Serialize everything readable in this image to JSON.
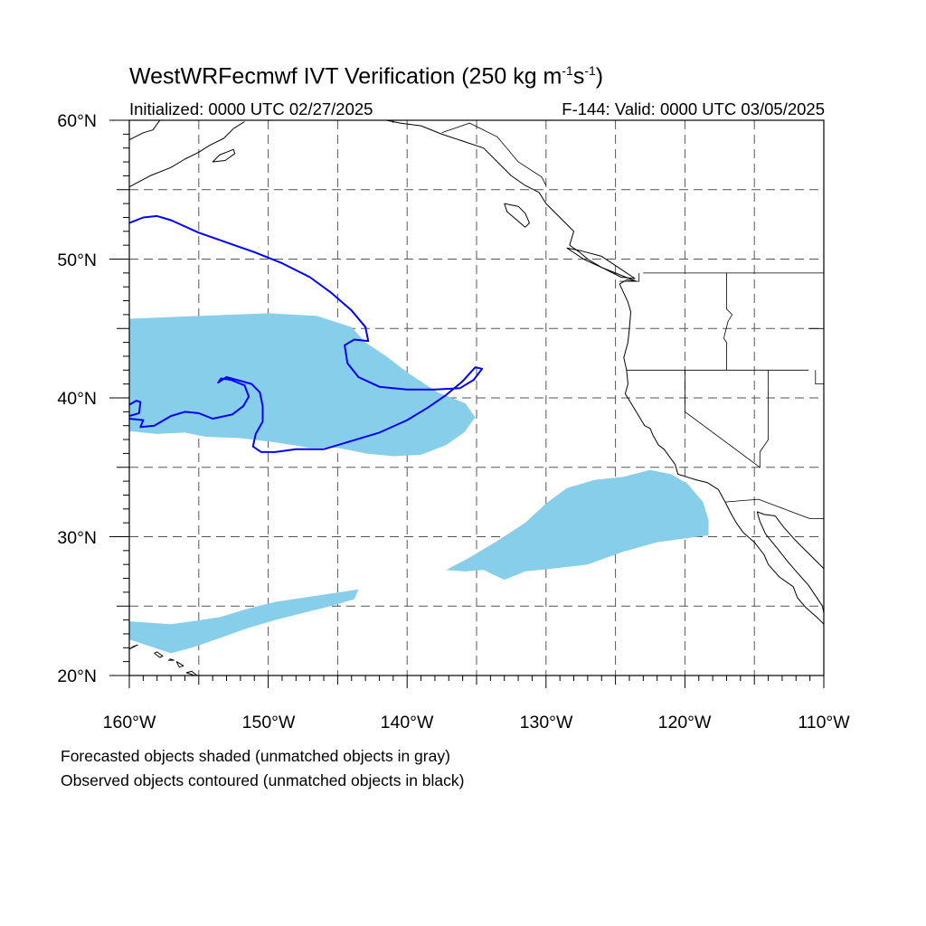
{
  "title": {
    "prefix": "WestWRFecmwf IVT Verification (250 kg m",
    "exp1": "-1",
    "mid": "s",
    "exp2": "-1",
    "suffix": ")"
  },
  "initialized": "Initialized: 0000 UTC 02/27/2025",
  "valid": "F-144: Valid: 0000 UTC 03/05/2025",
  "lat_labels": [
    "60°N",
    "50°N",
    "40°N",
    "30°N",
    "20°N"
  ],
  "lon_labels": [
    "160°W",
    "150°W",
    "140°W",
    "130°W",
    "120°W",
    "110°W"
  ],
  "notes": [
    "Forecasted objects shaded (unmatched objects in gray)",
    "Observed objects contoured (unmatched objects in black)"
  ],
  "colors": {
    "forecast_fill": "#87CEEB",
    "observed_contour": "#0000FF",
    "coastline": "#000000",
    "grid": "#555555"
  },
  "map_extent": {
    "lon_min": -160,
    "lon_max": -110,
    "lat_min": 20,
    "lat_max": 60
  },
  "forecast_objects": [
    {
      "name": "north-pacific-object",
      "polygon": [
        [
          -160,
          45.7
        ],
        [
          -155,
          45.9
        ],
        [
          -150,
          46.1
        ],
        [
          -146.5,
          45.9
        ],
        [
          -144,
          45.1
        ],
        [
          -143,
          44
        ],
        [
          -141.5,
          43
        ],
        [
          -139.8,
          41.7
        ],
        [
          -137.8,
          40.4
        ],
        [
          -135.8,
          39.6
        ],
        [
          -135.1,
          38.6
        ],
        [
          -135.9,
          37.5
        ],
        [
          -137.2,
          36.6
        ],
        [
          -139,
          35.9
        ],
        [
          -141,
          35.8
        ],
        [
          -143,
          36
        ],
        [
          -145,
          36.4
        ],
        [
          -147,
          36.4
        ],
        [
          -149.5,
          36.8
        ],
        [
          -152,
          37.1
        ],
        [
          -154.5,
          37.2
        ],
        [
          -156,
          37.5
        ],
        [
          -158,
          37.4
        ],
        [
          -160,
          37.6
        ]
      ]
    },
    {
      "name": "subtropical-object",
      "polygon": [
        [
          -137.2,
          27.6
        ],
        [
          -135.5,
          28.5
        ],
        [
          -133.5,
          29.7
        ],
        [
          -131.5,
          31
        ],
        [
          -130,
          32.4
        ],
        [
          -128.5,
          33.5
        ],
        [
          -126.5,
          34.1
        ],
        [
          -124.5,
          34.3
        ],
        [
          -122.5,
          34.8
        ],
        [
          -121,
          34.5
        ],
        [
          -119.8,
          33.8
        ],
        [
          -118.7,
          32.5
        ],
        [
          -118.3,
          31.2
        ],
        [
          -118.3,
          30.1
        ],
        [
          -119.8,
          29.9
        ],
        [
          -122,
          29.6
        ],
        [
          -124.5,
          28.9
        ],
        [
          -127,
          28
        ],
        [
          -129.5,
          27.7
        ],
        [
          -131.5,
          27.5
        ],
        [
          -133,
          26.9
        ],
        [
          -134.5,
          27.6
        ],
        [
          -135.8,
          27.5
        ]
      ]
    },
    {
      "name": "tropical-object",
      "polygon": [
        [
          -160,
          23.9
        ],
        [
          -157,
          23.7
        ],
        [
          -155.5,
          23.9
        ],
        [
          -153.5,
          24.2
        ],
        [
          -151.5,
          24.8
        ],
        [
          -149.5,
          25.3
        ],
        [
          -147.5,
          25.6
        ],
        [
          -145.5,
          25.9
        ],
        [
          -143.5,
          26.2
        ],
        [
          -143.8,
          25.5
        ],
        [
          -145.5,
          25
        ],
        [
          -147.5,
          24.5
        ],
        [
          -149.5,
          24
        ],
        [
          -151.5,
          23.4
        ],
        [
          -153.5,
          22.7
        ],
        [
          -155.5,
          22
        ],
        [
          -157,
          21.6
        ],
        [
          -158.5,
          22.1
        ],
        [
          -160,
          22.6
        ]
      ]
    }
  ],
  "observed_objects": [
    {
      "name": "observed-contour-north",
      "line": [
        [
          -160,
          52.6
        ],
        [
          -159,
          53
        ],
        [
          -158,
          53.1
        ],
        [
          -157,
          52.8
        ],
        [
          -155,
          51.9
        ],
        [
          -153,
          51.2
        ],
        [
          -151,
          50.5
        ],
        [
          -149,
          49.7
        ],
        [
          -147,
          48.7
        ],
        [
          -145.5,
          47.6
        ],
        [
          -144,
          46.3
        ],
        [
          -143,
          45.1
        ],
        [
          -142.8,
          44.1
        ],
        [
          -143.8,
          44.2
        ],
        [
          -144.5,
          43.8
        ],
        [
          -144.3,
          42.5
        ],
        [
          -143.5,
          41.5
        ],
        [
          -142,
          40.8
        ],
        [
          -140,
          40.6
        ],
        [
          -138,
          40.6
        ],
        [
          -136.2,
          40.7
        ],
        [
          -135.2,
          41.3
        ],
        [
          -134.6,
          42.1
        ],
        [
          -135.1,
          42.2
        ],
        [
          -136,
          41.2
        ],
        [
          -137.2,
          40.2
        ],
        [
          -138.5,
          39.3
        ],
        [
          -140,
          38.4
        ],
        [
          -142,
          37.5
        ],
        [
          -144,
          36.9
        ],
        [
          -146,
          36.3
        ],
        [
          -148,
          36.3
        ],
        [
          -149.5,
          36.1
        ],
        [
          -150.5,
          36.1
        ],
        [
          -151.1,
          36.5
        ],
        [
          -150.9,
          37.4
        ],
        [
          -150.4,
          38.3
        ],
        [
          -150.4,
          39.4
        ],
        [
          -150.6,
          40.4
        ],
        [
          -151.2,
          41
        ],
        [
          -153,
          41.5
        ],
        [
          -153.6,
          41.1
        ],
        [
          -153.4,
          41.4
        ],
        [
          -152.7,
          41.3
        ],
        [
          -151.7,
          40.9
        ],
        [
          -151.4,
          40.1
        ],
        [
          -151.8,
          39.4
        ],
        [
          -152.6,
          38.8
        ],
        [
          -154,
          38.5
        ],
        [
          -155,
          38.9
        ],
        [
          -156,
          39
        ],
        [
          -157,
          38.7
        ],
        [
          -158.2,
          38
        ],
        [
          -159.2,
          37.9
        ],
        [
          -159,
          38.4
        ],
        [
          -160,
          38.5
        ]
      ]
    },
    {
      "name": "observed-contour-west",
      "line": [
        [
          -160,
          39.5
        ],
        [
          -159.5,
          39.8
        ],
        [
          -159.2,
          39.7
        ],
        [
          -159.3,
          38.9
        ],
        [
          -160,
          38.7
        ]
      ]
    }
  ],
  "coastlines": [
    [
      [
        -117.1,
        32.5
      ],
      [
        -117.6,
        33.4
      ],
      [
        -118.4,
        33.9
      ],
      [
        -119.2,
        34.1
      ],
      [
        -120.5,
        34.5
      ],
      [
        -120.7,
        35.2
      ],
      [
        -121.5,
        36.3
      ],
      [
        -121.9,
        36.6
      ],
      [
        -122.3,
        37.3
      ],
      [
        -122.5,
        37.8
      ],
      [
        -122.9,
        38
      ],
      [
        -123.8,
        39.5
      ],
      [
        -124.3,
        40.3
      ],
      [
        -124.1,
        41
      ],
      [
        -124.2,
        42
      ],
      [
        -124.4,
        42.9
      ],
      [
        -124.1,
        44
      ],
      [
        -124,
        45
      ],
      [
        -123.9,
        46.2
      ],
      [
        -124.1,
        46.9
      ],
      [
        -124.7,
        48.2
      ],
      [
        -124.2,
        48.5
      ],
      [
        -123.5,
        48.4
      ],
      [
        -125,
        49
      ],
      [
        -126,
        49.4
      ],
      [
        -127,
        50
      ],
      [
        -127.6,
        50.5
      ],
      [
        -128.3,
        51
      ],
      [
        -128,
        52
      ],
      [
        -129,
        53
      ],
      [
        -130,
        54
      ],
      [
        -130.5,
        54.8
      ],
      [
        -131.5,
        55.3
      ],
      [
        -132.5,
        56
      ],
      [
        -133.5,
        57
      ],
      [
        -134.5,
        58
      ],
      [
        -136,
        58.5
      ],
      [
        -137.5,
        59
      ],
      [
        -139,
        59.6
      ],
      [
        -140.5,
        59.8
      ],
      [
        -141.5,
        60
      ]
    ],
    [
      [
        -117.1,
        32.5
      ],
      [
        -116.7,
        31.7
      ],
      [
        -116.3,
        31
      ],
      [
        -115.8,
        30.3
      ],
      [
        -115,
        29.6
      ],
      [
        -114.3,
        28.7
      ],
      [
        -114,
        28
      ],
      [
        -113.2,
        27.1
      ],
      [
        -112.2,
        26.4
      ],
      [
        -111.9,
        25.6
      ],
      [
        -111.3,
        24.9
      ],
      [
        -110.5,
        24.2
      ],
      [
        -110,
        23.7
      ]
    ],
    [
      [
        -114.8,
        31.8
      ],
      [
        -114.6,
        31.1
      ],
      [
        -114.2,
        30.2
      ],
      [
        -113.3,
        29.1
      ],
      [
        -112.6,
        28.2
      ],
      [
        -111.9,
        27.4
      ],
      [
        -111.1,
        26.5
      ],
      [
        -110.1,
        25
      ],
      [
        -110,
        24.5
      ]
    ],
    [
      [
        -110,
        27.7
      ],
      [
        -110.6,
        28.3
      ],
      [
        -111.3,
        29
      ],
      [
        -112.1,
        29.8
      ],
      [
        -112.9,
        30.7
      ],
      [
        -113.5,
        31.5
      ],
      [
        -114.3,
        31.6
      ],
      [
        -114.8,
        31.8
      ]
    ],
    [
      [
        -160,
        55.2
      ],
      [
        -158.5,
        56
      ],
      [
        -157,
        56.6
      ],
      [
        -156,
        57.2
      ],
      [
        -155,
        57.7
      ],
      [
        -154.2,
        58.2
      ],
      [
        -153.2,
        58.7
      ],
      [
        -152.5,
        59.4
      ],
      [
        -151.7,
        59.9
      ]
    ],
    [
      [
        -160,
        58.6
      ],
      [
        -159,
        59.1
      ],
      [
        -158.3,
        59.3
      ],
      [
        -157.8,
        60
      ]
    ],
    [
      [
        -152.5,
        57.9
      ],
      [
        -153.5,
        57.5
      ],
      [
        -154,
        57
      ],
      [
        -153.1,
        57.1
      ],
      [
        -152.4,
        57.6
      ],
      [
        -152.5,
        57.9
      ]
    ],
    [
      [
        -133,
        54
      ],
      [
        -132,
        53.8
      ],
      [
        -131.5,
        53.3
      ],
      [
        -131.2,
        52.6
      ],
      [
        -131.5,
        52.3
      ],
      [
        -132.2,
        52.9
      ],
      [
        -132.8,
        53.4
      ],
      [
        -133,
        54
      ]
    ],
    [
      [
        -128.5,
        50.8
      ],
      [
        -127.5,
        50.6
      ],
      [
        -126,
        50.2
      ],
      [
        -124.8,
        49.4
      ],
      [
        -123.6,
        48.6
      ],
      [
        -124.6,
        48.7
      ],
      [
        -125.8,
        49.3
      ],
      [
        -127.3,
        50
      ],
      [
        -128.5,
        50.8
      ]
    ],
    [
      [
        -160,
        21.9
      ],
      [
        -159.4,
        22.2
      ],
      [
        -159.7,
        22.1
      ],
      [
        -160,
        21.9
      ]
    ],
    [
      [
        -158.2,
        21.6
      ],
      [
        -157.8,
        21.3
      ],
      [
        -157.6,
        21.4
      ],
      [
        -158,
        21.7
      ],
      [
        -158.2,
        21.6
      ]
    ],
    [
      [
        -157.1,
        21.2
      ],
      [
        -156.8,
        21.1
      ],
      [
        -157.2,
        21.1
      ]
    ],
    [
      [
        -156.6,
        21
      ],
      [
        -156.1,
        20.7
      ],
      [
        -156.4,
        20.6
      ],
      [
        -156.6,
        21
      ]
    ],
    [
      [
        -155.9,
        20.2
      ],
      [
        -155,
        19.9
      ],
      [
        -155.5,
        20.3
      ],
      [
        -155.9,
        20.2
      ]
    ]
  ],
  "borders": [
    [
      [
        -123,
        49
      ],
      [
        -110,
        49
      ]
    ],
    [
      [
        -117,
        49
      ],
      [
        -117,
        46.4
      ],
      [
        -116.6,
        46
      ],
      [
        -116.9,
        45.5
      ],
      [
        -117.2,
        44.3
      ],
      [
        -117,
        44
      ],
      [
        -117,
        42
      ]
    ],
    [
      [
        -124.2,
        42
      ],
      [
        -111.1,
        42
      ]
    ],
    [
      [
        -120,
        42
      ],
      [
        -120,
        39
      ],
      [
        -114.6,
        35
      ]
    ],
    [
      [
        -114,
        42
      ],
      [
        -114,
        37
      ],
      [
        -114.6,
        36.1
      ],
      [
        -114.6,
        35
      ]
    ],
    [
      [
        -110.6,
        42
      ],
      [
        -110.6,
        41
      ],
      [
        -110,
        41
      ]
    ],
    [
      [
        -111.1,
        45
      ],
      [
        -110,
        45
      ]
    ],
    [
      [
        -117.1,
        32.5
      ],
      [
        -114.7,
        32.7
      ],
      [
        -111,
        31.3
      ],
      [
        -110,
        31.3
      ]
    ],
    [
      [
        -123.3,
        49
      ],
      [
        -123.3,
        48.4
      ],
      [
        -124.7,
        48.4
      ]
    ],
    [
      [
        -141,
        60
      ],
      [
        -141,
        59.8
      ]
    ],
    [
      [
        -137.5,
        59.1
      ],
      [
        -135.5,
        59.8
      ],
      [
        -133.5,
        58.8
      ],
      [
        -132,
        57
      ],
      [
        -130.3,
        55.9
      ],
      [
        -130,
        55.3
      ]
    ]
  ]
}
